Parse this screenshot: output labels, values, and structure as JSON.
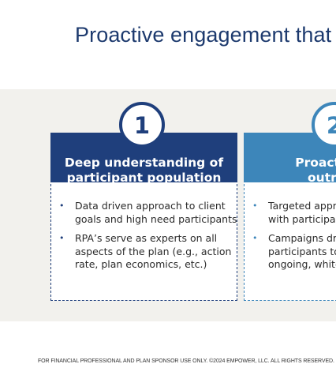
{
  "title": "Proactive engagement that",
  "cards": [
    {
      "number": "1",
      "heading_lines": [
        "Deep understanding of",
        "participant population"
      ],
      "bullets": [
        [
          "Data driven approach to client",
          "goals and high need participants"
        ],
        [
          "RPA’s serve as experts on all",
          "aspects of the plan (e.g., action",
          "rate, plan economics, etc.)"
        ]
      ],
      "accent_color": "#1f3f7c"
    },
    {
      "number": "2",
      "heading_lines": [
        "Proactive an",
        "outreach"
      ],
      "bullets": [
        [
          "Targeted appr",
          "with participan"
        ],
        [
          "Campaigns dri",
          "participants to",
          "ongoing, white"
        ]
      ],
      "accent_color": "#3d86ba"
    }
  ],
  "footer": "FOR FINANCIAL PROFESSIONAL AND PLAN SPONSOR USE ONLY. ©2024 EMPOWER, LLC. ALL RIGHTS RESERVED.",
  "colors": {
    "title": "#1d3a6e",
    "band_background": "#f2f1ed"
  }
}
